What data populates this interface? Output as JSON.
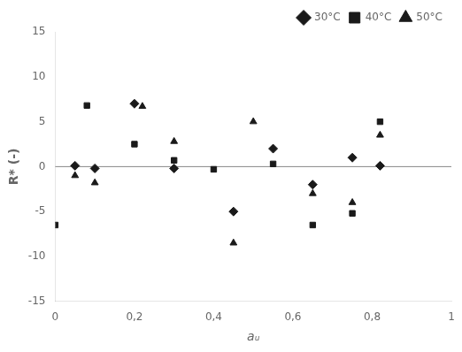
{
  "chart_data": {
    "type": "scatter",
    "xlabel": "aᵤ",
    "ylabel": "R* (-)",
    "series": [
      {
        "name": "30°C",
        "color": "#1a1a1a",
        "marker": "diamond",
        "x": [
          0.05,
          0.1,
          0.2,
          0.3,
          0.45,
          0.55,
          0.65,
          0.75,
          0.82
        ],
        "values": [
          0.1,
          -0.2,
          7.0,
          -0.2,
          -5.0,
          2.0,
          -2.0,
          1.0,
          0.1
        ]
      },
      {
        "name": "40°C",
        "color": "#1a1a1a",
        "marker": "square",
        "x": [
          0.0,
          0.08,
          0.2,
          0.3,
          0.4,
          0.55,
          0.65,
          0.75,
          0.82
        ],
        "values": [
          -6.5,
          6.8,
          2.5,
          0.7,
          -0.3,
          0.3,
          -6.5,
          -5.2,
          5.0
        ]
      },
      {
        "name": "50°C",
        "color": "#1a1a1a",
        "marker": "triangle",
        "x": [
          0.05,
          0.1,
          0.22,
          0.3,
          0.45,
          0.5,
          0.65,
          0.75,
          0.82
        ],
        "values": [
          -1.0,
          -1.8,
          6.7,
          2.8,
          -8.5,
          5.0,
          -3.0,
          -4.0,
          3.5
        ]
      }
    ],
    "hline": 0,
    "xlim": [
      0,
      1.0
    ],
    "ylim": [
      -15,
      15
    ],
    "xticks": [
      0,
      {
        "value": 0.2,
        "label": "0,2"
      },
      {
        "value": 0.4,
        "label": "0,4"
      },
      {
        "value": 0.6,
        "label": "0,6"
      },
      {
        "value": 0.8,
        "label": "0,8"
      },
      1
    ],
    "yticks": [
      -15,
      -10,
      -5,
      0,
      5,
      10,
      15
    ],
    "grid": false,
    "legend": "upper right"
  }
}
